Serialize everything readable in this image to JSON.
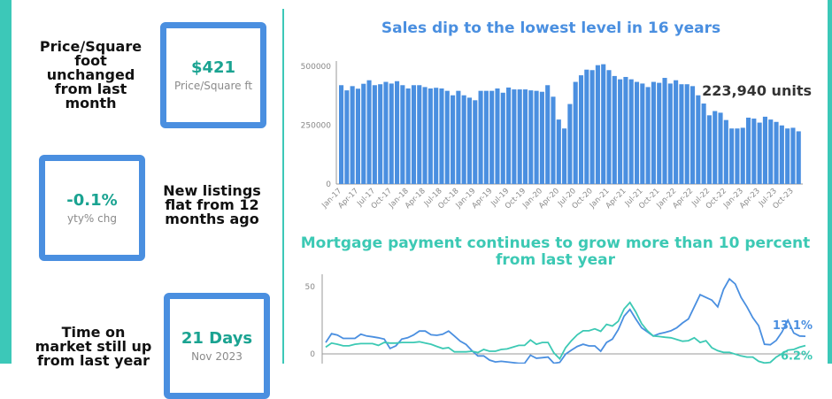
{
  "colors": {
    "accent": "#3cc8b8",
    "box_border": "#4a8fe0",
    "kpi_value": "#1aa391",
    "bar": "#4a8fe0",
    "line_blue": "#4a8fe0",
    "line_teal": "#3cc9b4"
  },
  "kpis": [
    {
      "text": "Price/Square foot unchanged from last month",
      "value": "$421",
      "sub": "Price/Square ft"
    },
    {
      "text": "New listings flat from 12 months ago",
      "value": "-0.1%",
      "sub": "yty% chg"
    },
    {
      "text": "Time on market still up from last year",
      "value": "21 Days",
      "sub": "Nov 2023"
    }
  ],
  "chart_data": [
    {
      "type": "bar",
      "title": "Sales dip to the lowest level in 16 years",
      "annotation": "223,940 units",
      "ylim": [
        0,
        500000
      ],
      "y_ticks": [
        "0",
        "250000",
        "500000"
      ],
      "x_tick_labels": [
        "Jan-17",
        "Apr-17",
        "Jul-17",
        "Oct-17",
        "Jan-18",
        "Apr-18",
        "Jul-18",
        "Oct-18",
        "Jan-19",
        "Apr-19",
        "Jul-19",
        "Oct-19",
        "Jan-20",
        "Apr-20",
        "Jul-20",
        "Oct-20",
        "Jan-21",
        "Apr-21",
        "Jul-21",
        "Oct-21",
        "Jan-22",
        "Apr-22",
        "Jul-22",
        "Oct-22",
        "Jan-23",
        "Apr-23",
        "Jul-23",
        "Oct-23"
      ],
      "x_start": "Jan-17",
      "x_end": "Nov-23",
      "values": [
        420000,
        398000,
        416000,
        405000,
        426000,
        441000,
        420000,
        424000,
        434000,
        427000,
        437000,
        420000,
        406000,
        420000,
        420000,
        412000,
        406000,
        409000,
        406000,
        396000,
        377000,
        396000,
        377000,
        367000,
        356000,
        396000,
        396000,
        396000,
        406000,
        388000,
        410000,
        402000,
        402000,
        402000,
        398000,
        396000,
        392000,
        420000,
        371000,
        274000,
        236000,
        340000,
        434000,
        462000,
        486000,
        484000,
        505000,
        509000,
        484000,
        459000,
        445000,
        455000,
        445000,
        434000,
        427000,
        412000,
        434000,
        430000,
        451000,
        427000,
        441000,
        424000,
        424000,
        416000,
        377000,
        342000,
        292000,
        310000,
        303000,
        272000,
        236000,
        236000,
        239000,
        282000,
        278000,
        261000,
        286000,
        274000,
        264000,
        249000,
        236000,
        239000,
        223940
      ],
      "grid": false
    },
    {
      "type": "line",
      "title_lines": [
        "Mortgage payment continues to grow more than 10 percent",
        "from last year"
      ],
      "y_ticks": [
        "0",
        "50"
      ],
      "ylim": [
        -50,
        60
      ],
      "series": [
        {
          "label": "13.1%",
          "color": "#4a8fe0",
          "values": [
            8.5,
            15,
            14,
            11.5,
            11.5,
            11.5,
            14.6,
            13.3,
            12.7,
            12,
            11,
            4,
            6,
            11,
            12,
            14,
            17,
            17,
            14.2,
            13.8,
            14.6,
            17,
            13.3,
            9.4,
            7,
            2.4,
            -1.5,
            -1.5,
            -4.6,
            -6,
            -5.5,
            -6,
            -6.5,
            -7,
            -7,
            -1,
            -3.2,
            -2.8,
            -2.4,
            -7,
            -6.3,
            -0.2,
            2.8,
            5.5,
            7.2,
            5.9,
            5.9,
            2,
            8.5,
            11,
            18,
            28,
            33,
            26,
            19.4,
            16.4,
            13.3,
            15,
            16,
            17.2,
            19.4,
            23,
            26,
            35,
            44,
            42,
            40,
            35,
            48,
            55.7,
            52,
            42,
            35,
            27,
            21,
            7.2,
            6.8,
            10,
            16.4,
            25,
            15.5,
            13.3,
            13.1
          ]
        },
        {
          "label": "6.2%",
          "color": "#3cc9b4",
          "values": [
            5,
            8,
            7.2,
            6,
            6,
            7.2,
            7.6,
            7.6,
            7.6,
            6.3,
            8.5,
            8,
            8,
            8.5,
            8.5,
            8.5,
            9,
            8,
            7.2,
            5.5,
            4,
            4.6,
            1.5,
            1.5,
            1.5,
            2,
            1,
            3.3,
            2,
            2,
            3.3,
            3.7,
            5,
            6.3,
            6.3,
            10.3,
            7.2,
            8.5,
            8.5,
            0.7,
            -3.7,
            4.6,
            9.8,
            14.2,
            17.2,
            17.2,
            18.6,
            16.8,
            22,
            20.7,
            24.2,
            33.4,
            38.2,
            31.2,
            22.5,
            17.2,
            13.3,
            12.9,
            12.4,
            12,
            10.7,
            9.4,
            9.8,
            12,
            8.5,
            9.8,
            4.6,
            2.4,
            1.1,
            1.1,
            -0.2,
            -1.5,
            -2.4,
            -2.4,
            -5.5,
            -6.8,
            -6.3,
            -2.4,
            0.2,
            2.8,
            3.3,
            5,
            6.2
          ]
        }
      ]
    }
  ]
}
